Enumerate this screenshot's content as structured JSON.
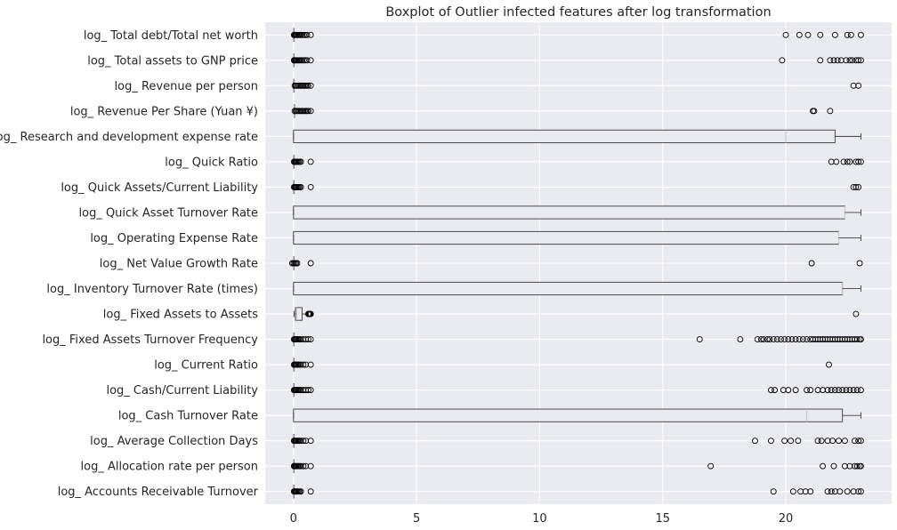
{
  "chart_data": {
    "type": "boxplot",
    "orientation": "horizontal",
    "title": "Boxplot of Outlier infected features after log transformation",
    "xlabel": "",
    "ylabel": "",
    "xlim": [
      -1.15,
      24.3
    ],
    "xticks": [
      0,
      5,
      10,
      15,
      20
    ],
    "xtick_labels": [
      "0",
      "5",
      "10",
      "15",
      "20"
    ],
    "grid": true,
    "legend": "none",
    "colors": {
      "background": "#eaeaf2",
      "grid": "#ffffff",
      "box_fill": "#eaeaf2",
      "box_edge": "#3a3a3a",
      "median": "#c8c8c8",
      "text": "#262626"
    },
    "categories": [
      "log_ Total debt/Total net worth",
      "log_ Total assets to GNP price",
      "log_ Revenue per person",
      "log_ Revenue Per Share (Yuan ¥)",
      "log_ Research and development expense rate",
      "log_ Quick Ratio",
      "log_ Quick Assets/Current Liability",
      "log_ Quick Asset Turnover Rate",
      "log_ Operating Expense Rate",
      "log_ Net Value Growth Rate",
      "log_ Inventory Turnover Rate (times)",
      "log_ Fixed Assets to Assets",
      "log_ Fixed Assets Turnover Frequency",
      "log_ Current Ratio",
      "log_ Cash/Current Liability",
      "log_ Cash Turnover Rate",
      "log_ Average Collection Days",
      "log_ Allocation rate per person",
      "log_ Accounts Receivable Turnover"
    ],
    "boxes": [
      {
        "whislo": 0,
        "q1": 0,
        "med": 0,
        "q3": 0,
        "whishi": 0,
        "fliers": [
          0.02,
          0.05,
          0.08,
          0.12,
          0.16,
          0.2,
          0.25,
          0.3,
          0.36,
          0.42,
          0.48,
          0.55,
          0.7,
          20.0,
          20.55,
          20.9,
          21.4,
          22.0,
          22.5,
          22.65,
          23.05
        ]
      },
      {
        "whislo": 0,
        "q1": 0,
        "med": 0,
        "q3": 0,
        "whishi": 0,
        "fliers": [
          0.02,
          0.05,
          0.08,
          0.12,
          0.16,
          0.2,
          0.25,
          0.3,
          0.36,
          0.42,
          0.48,
          0.55,
          0.7,
          19.85,
          21.4,
          21.8,
          21.95,
          22.1,
          22.25,
          22.45,
          22.6,
          22.7,
          22.85,
          22.95,
          23.05
        ]
      },
      {
        "whislo": 0,
        "q1": 0,
        "med": 0,
        "q3": 0,
        "whishi": 0,
        "fliers": [
          0.05,
          0.1,
          0.15,
          0.2,
          0.25,
          0.3,
          0.35,
          0.4,
          0.45,
          0.5,
          0.55,
          0.6,
          0.7,
          22.75,
          22.95
        ]
      },
      {
        "whislo": 0.02,
        "q1": 0.02,
        "med": 0.02,
        "q3": 0.02,
        "whishi": 0.02,
        "fliers": [
          0.05,
          0.1,
          0.15,
          0.2,
          0.25,
          0.3,
          0.35,
          0.4,
          0.45,
          0.5,
          0.55,
          0.6,
          0.7,
          21.1,
          21.15,
          21.8
        ]
      },
      {
        "whislo": 0,
        "q1": 0,
        "med": 20.0,
        "q3": 22.0,
        "whishi": 23.05,
        "fliers": []
      },
      {
        "whislo": 0,
        "q1": 0,
        "med": 0,
        "q3": 0,
        "whishi": 0,
        "fliers": [
          0.02,
          0.05,
          0.08,
          0.12,
          0.16,
          0.2,
          0.25,
          0.3,
          0.7,
          21.85,
          22.05,
          22.35,
          22.5,
          22.6,
          22.85,
          22.95,
          23.05
        ]
      },
      {
        "whislo": 0,
        "q1": 0,
        "med": 0,
        "q3": 0,
        "whishi": 0,
        "fliers": [
          0.02,
          0.05,
          0.08,
          0.12,
          0.16,
          0.2,
          0.25,
          0.3,
          0.7,
          22.75,
          22.85,
          22.95
        ]
      },
      {
        "whislo": 0,
        "q1": 0,
        "med": 22.4,
        "q3": 22.4,
        "whishi": 23.05,
        "fliers": []
      },
      {
        "whislo": 0,
        "q1": 0,
        "med": 22.15,
        "q3": 22.15,
        "whishi": 23.05,
        "fliers": []
      },
      {
        "whislo": 0,
        "q1": 0,
        "med": 0,
        "q3": 0,
        "whishi": 0,
        "fliers": [
          -0.05,
          0,
          0.05,
          0.1,
          0.15,
          0.7,
          21.05,
          23.0
        ]
      },
      {
        "whislo": 0,
        "q1": 0,
        "med": 22.3,
        "q3": 22.3,
        "whishi": 23.05,
        "fliers": []
      },
      {
        "whislo": 0.02,
        "q1": 0.08,
        "med": 0.12,
        "q3": 0.35,
        "whishi": 0.58,
        "fliers": [
          0.6,
          0.63,
          0.66,
          0.68,
          0.7,
          22.85
        ]
      },
      {
        "whislo": 0,
        "q1": 0,
        "med": 0,
        "q3": 0,
        "whishi": 0,
        "fliers": [
          0.02,
          0.05,
          0.08,
          0.12,
          0.16,
          0.2,
          0.25,
          0.3,
          0.4,
          0.5,
          0.6,
          0.7,
          16.5,
          18.15,
          18.85,
          19.0,
          19.1,
          19.25,
          19.35,
          19.5,
          19.65,
          19.8,
          19.95,
          20.1,
          20.25,
          20.4,
          20.55,
          20.7,
          20.85,
          21.0,
          21.1,
          21.2,
          21.3,
          21.4,
          21.5,
          21.6,
          21.7,
          21.8,
          21.9,
          22.0,
          22.1,
          22.2,
          22.3,
          22.4,
          22.5,
          22.6,
          22.7,
          22.8,
          22.9,
          23.0,
          23.05
        ]
      },
      {
        "whislo": 0,
        "q1": 0,
        "med": 0,
        "q3": 0,
        "whishi": 0,
        "fliers": [
          0.02,
          0.05,
          0.08,
          0.12,
          0.16,
          0.2,
          0.25,
          0.3,
          0.4,
          0.5,
          0.7,
          21.75
        ]
      },
      {
        "whislo": 0,
        "q1": 0,
        "med": 0,
        "q3": 0,
        "whishi": 0,
        "fliers": [
          0.02,
          0.05,
          0.08,
          0.12,
          0.16,
          0.2,
          0.25,
          0.3,
          0.4,
          0.5,
          0.6,
          0.7,
          19.4,
          19.55,
          19.9,
          20.1,
          20.4,
          20.85,
          21.0,
          21.3,
          21.5,
          21.7,
          21.85,
          22.0,
          22.15,
          22.3,
          22.45,
          22.6,
          22.75,
          22.9,
          23.05
        ]
      },
      {
        "whislo": 0,
        "q1": 0,
        "med": 20.85,
        "q3": 22.3,
        "whishi": 23.05,
        "fliers": []
      },
      {
        "whislo": 0,
        "q1": 0,
        "med": 0,
        "q3": 0,
        "whishi": 0,
        "fliers": [
          0.02,
          0.05,
          0.08,
          0.12,
          0.16,
          0.2,
          0.25,
          0.3,
          0.4,
          0.5,
          0.7,
          18.75,
          19.4,
          19.95,
          20.2,
          20.5,
          21.3,
          21.45,
          21.7,
          21.9,
          22.15,
          22.4,
          22.8,
          22.95,
          23.05
        ]
      },
      {
        "whislo": 0,
        "q1": 0,
        "med": 0,
        "q3": 0,
        "whishi": 0,
        "fliers": [
          0.02,
          0.05,
          0.08,
          0.12,
          0.16,
          0.2,
          0.25,
          0.3,
          0.4,
          0.5,
          0.7,
          16.95,
          21.5,
          21.95,
          22.4,
          22.6,
          22.8,
          22.9,
          23.0,
          23.05
        ]
      },
      {
        "whislo": 0,
        "q1": 0,
        "med": 0,
        "q3": 0,
        "whishi": 0,
        "fliers": [
          0.02,
          0.05,
          0.08,
          0.12,
          0.16,
          0.2,
          0.25,
          0.3,
          0.7,
          19.5,
          20.3,
          20.6,
          20.8,
          21.0,
          21.7,
          21.85,
          22.0,
          22.2,
          22.5,
          22.75,
          22.95,
          23.05
        ]
      }
    ]
  }
}
